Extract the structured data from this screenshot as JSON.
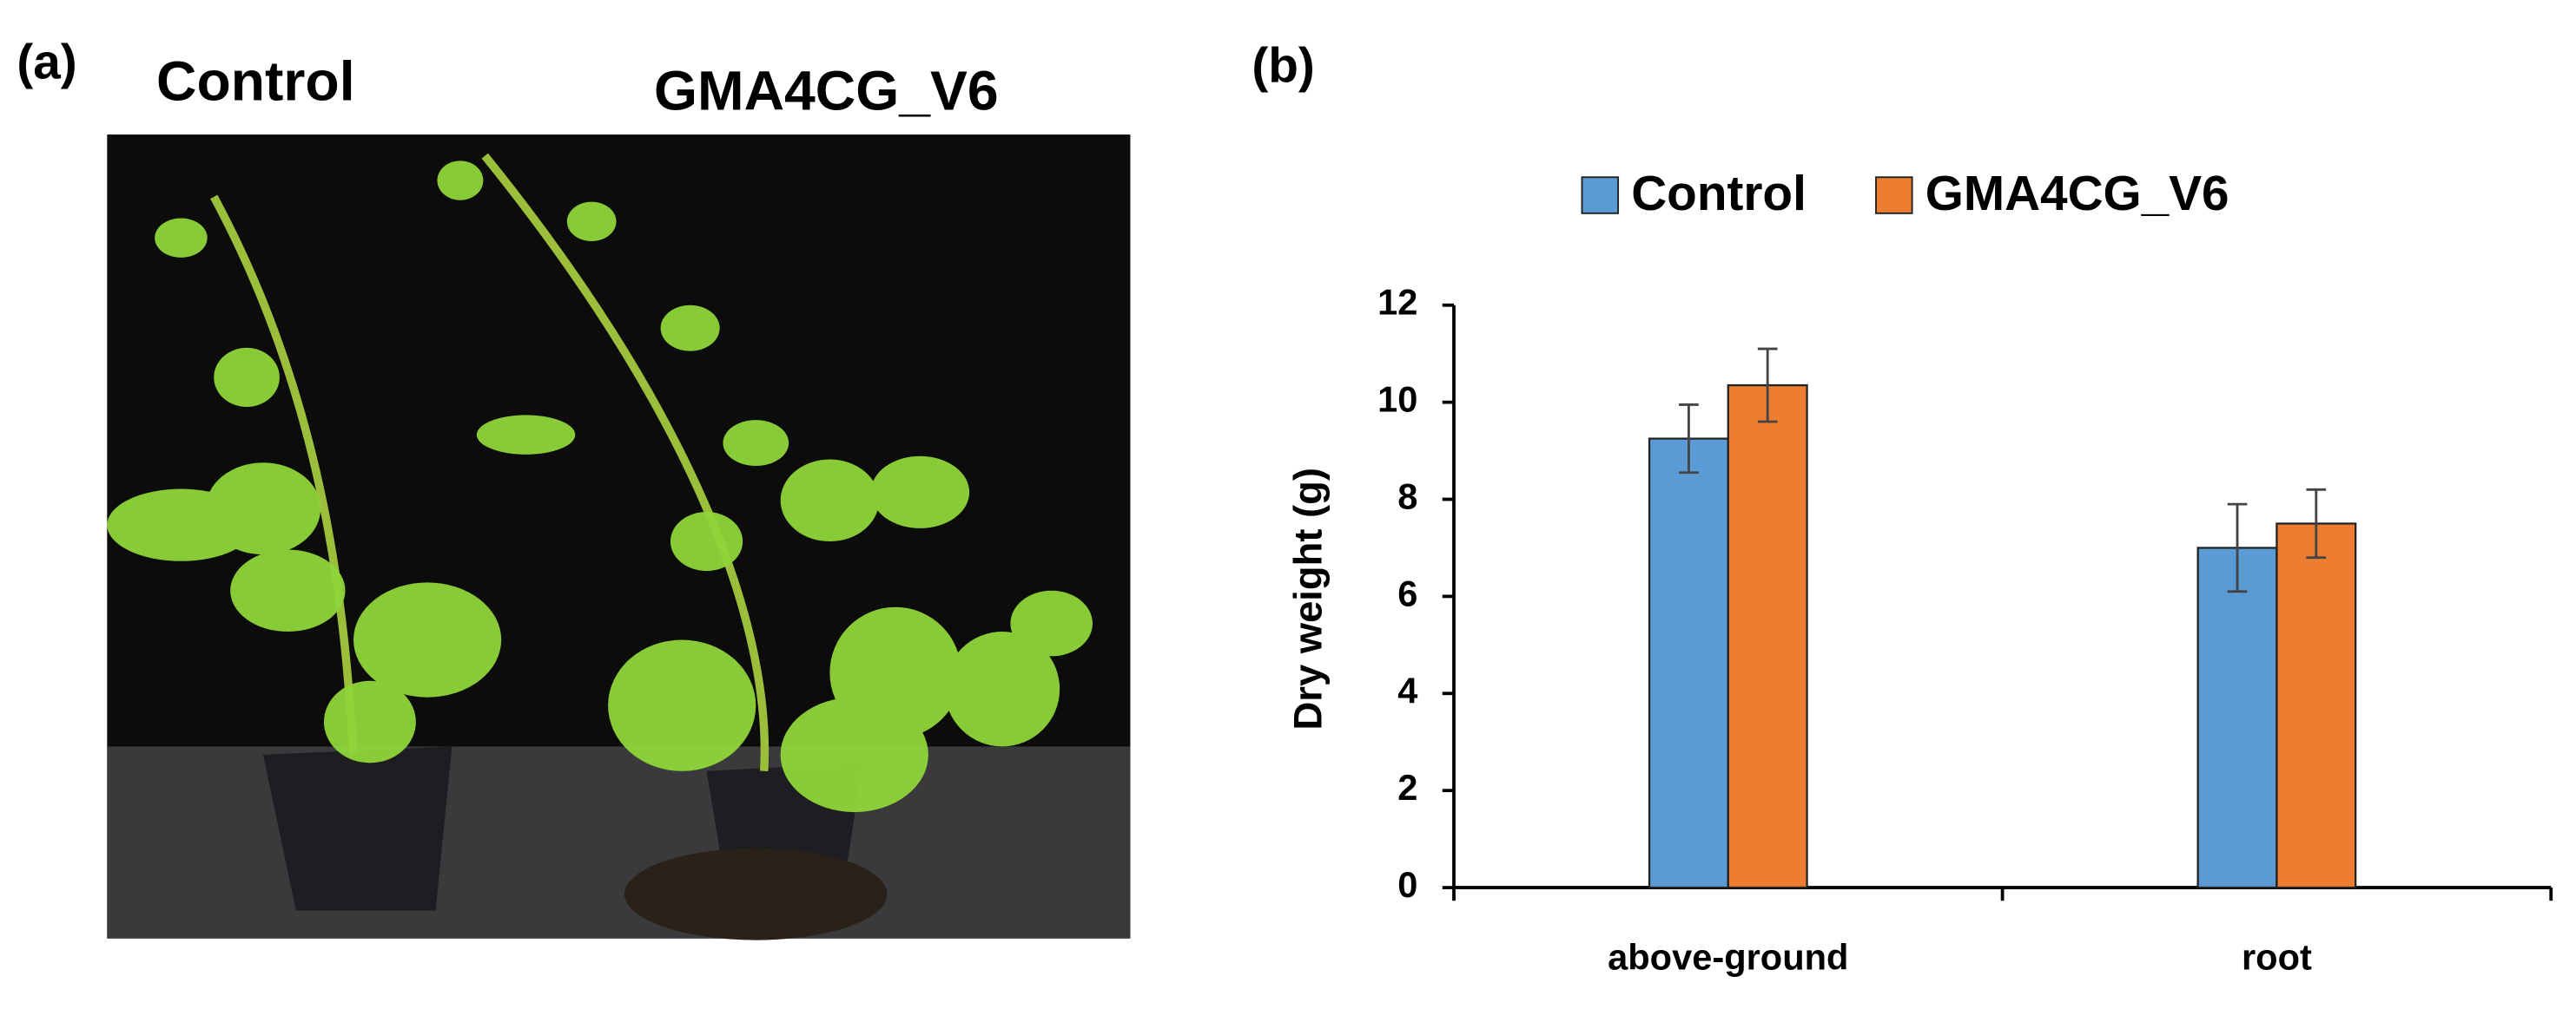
{
  "panel_a": {
    "label": "(a)",
    "photo_labels": [
      "Control",
      "GMA4CG_V6"
    ]
  },
  "chart_data": {
    "type": "bar",
    "panel_label": "(b)",
    "ylabel": "Dry weight (g)",
    "categories": [
      "above-ground",
      "root"
    ],
    "series": [
      {
        "name": "Control",
        "color": "#5b9bd5",
        "values": [
          9.25,
          7.0
        ],
        "errors": [
          0.7,
          0.9
        ]
      },
      {
        "name": "GMA4CG_V6",
        "color": "#ed7d31",
        "values": [
          10.35,
          7.5
        ],
        "errors": [
          0.75,
          0.7
        ]
      }
    ],
    "ylim": [
      0,
      12
    ],
    "yticks": [
      0,
      2,
      4,
      6,
      8,
      10,
      12
    ],
    "grid": false,
    "legend": "top"
  }
}
